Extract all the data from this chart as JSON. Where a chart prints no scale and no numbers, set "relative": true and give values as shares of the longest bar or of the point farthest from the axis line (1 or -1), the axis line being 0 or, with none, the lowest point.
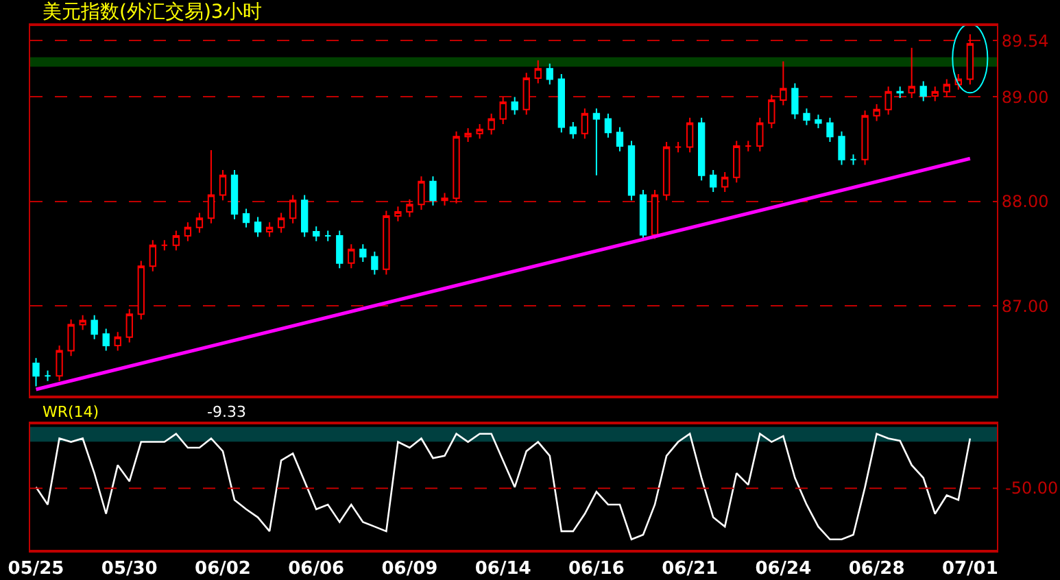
{
  "chart_data": [
    {
      "type": "candlestick",
      "title": "美元指数(外汇交易)3小时",
      "tick_labels": "y",
      "grid": "y",
      "categories": [
        "05/25",
        null,
        null,
        null,
        null,
        null,
        null,
        null,
        "05/30",
        null,
        null,
        null,
        null,
        null,
        null,
        null,
        "06/02",
        null,
        null,
        null,
        null,
        null,
        null,
        null,
        "06/06",
        null,
        null,
        null,
        null,
        null,
        null,
        null,
        "06/09",
        null,
        null,
        null,
        null,
        null,
        null,
        null,
        "06/14",
        null,
        null,
        null,
        null,
        null,
        null,
        null,
        "06/16",
        null,
        null,
        null,
        null,
        null,
        null,
        null,
        "06/21",
        null,
        null,
        null,
        null,
        null,
        null,
        null,
        "06/24",
        null,
        null,
        null,
        null,
        null,
        null,
        null,
        "06/28",
        null,
        null,
        null,
        null,
        null,
        null,
        null,
        "07/01"
      ],
      "ohlc": [
        [
          86.45,
          86.5,
          86.23,
          86.33
        ],
        [
          86.33,
          86.38,
          86.28,
          86.33
        ],
        [
          86.33,
          86.62,
          86.28,
          86.57
        ],
        [
          86.57,
          86.87,
          86.52,
          86.82
        ],
        [
          86.82,
          86.91,
          86.77,
          86.86
        ],
        [
          86.86,
          86.91,
          86.68,
          86.73
        ],
        [
          86.73,
          86.78,
          86.57,
          86.62
        ],
        [
          86.62,
          86.75,
          86.57,
          86.7
        ],
        [
          86.7,
          86.97,
          86.65,
          86.92
        ],
        [
          86.92,
          87.43,
          86.87,
          87.38
        ],
        [
          87.38,
          87.63,
          87.33,
          87.58
        ],
        [
          87.58,
          87.63,
          87.53,
          87.58
        ],
        [
          87.58,
          87.72,
          87.53,
          87.67
        ],
        [
          87.67,
          87.8,
          87.62,
          87.75
        ],
        [
          87.75,
          87.89,
          87.7,
          87.84
        ],
        [
          87.84,
          88.49,
          87.79,
          88.06
        ],
        [
          88.06,
          88.3,
          88.01,
          88.25
        ],
        [
          88.25,
          88.3,
          87.83,
          87.88
        ],
        [
          87.88,
          87.93,
          87.75,
          87.8
        ],
        [
          87.8,
          87.85,
          87.66,
          87.71
        ],
        [
          87.71,
          87.8,
          87.66,
          87.75
        ],
        [
          87.75,
          87.89,
          87.7,
          87.84
        ],
        [
          87.84,
          88.06,
          87.79,
          88.01
        ],
        [
          88.01,
          88.06,
          87.66,
          87.71
        ],
        [
          87.71,
          87.76,
          87.62,
          87.67
        ],
        [
          87.67,
          87.72,
          87.62,
          87.67
        ],
        [
          87.67,
          87.72,
          87.36,
          87.41
        ],
        [
          87.41,
          87.59,
          87.36,
          87.54
        ],
        [
          87.54,
          87.59,
          87.42,
          87.47
        ],
        [
          87.47,
          87.52,
          87.3,
          87.35
        ],
        [
          87.35,
          87.91,
          87.3,
          87.86
        ],
        [
          87.86,
          87.95,
          87.81,
          87.9
        ],
        [
          87.9,
          88.02,
          87.85,
          87.97
        ],
        [
          87.97,
          88.24,
          87.92,
          88.19
        ],
        [
          88.19,
          88.24,
          87.96,
          88.01
        ],
        [
          88.01,
          88.08,
          87.96,
          88.03
        ],
        [
          88.03,
          88.67,
          87.98,
          88.62
        ],
        [
          88.62,
          88.7,
          88.57,
          88.65
        ],
        [
          88.65,
          88.74,
          88.6,
          88.69
        ],
        [
          88.69,
          88.84,
          88.64,
          88.79
        ],
        [
          88.79,
          89.0,
          88.74,
          88.95
        ],
        [
          88.95,
          89.0,
          88.83,
          88.88
        ],
        [
          88.88,
          89.23,
          88.83,
          89.18
        ],
        [
          89.18,
          89.35,
          89.13,
          89.27
        ],
        [
          89.27,
          89.32,
          89.12,
          89.17
        ],
        [
          89.17,
          89.22,
          88.66,
          88.71
        ],
        [
          88.71,
          88.76,
          88.6,
          88.65
        ],
        [
          88.65,
          88.89,
          88.6,
          88.84
        ],
        [
          88.84,
          88.89,
          88.25,
          88.79
        ],
        [
          88.79,
          88.84,
          88.61,
          88.66
        ],
        [
          88.66,
          88.71,
          88.48,
          88.53
        ],
        [
          88.53,
          88.58,
          88.01,
          88.06
        ],
        [
          88.06,
          88.11,
          87.64,
          87.68
        ],
        [
          87.68,
          88.11,
          87.64,
          88.06
        ],
        [
          88.06,
          88.57,
          88.01,
          88.52
        ],
        [
          88.52,
          88.57,
          88.47,
          88.52
        ],
        [
          88.52,
          88.8,
          88.47,
          88.75
        ],
        [
          88.75,
          88.8,
          88.2,
          88.25
        ],
        [
          88.25,
          88.3,
          88.09,
          88.14
        ],
        [
          88.14,
          88.28,
          88.09,
          88.23
        ],
        [
          88.23,
          88.58,
          88.18,
          88.53
        ],
        [
          88.53,
          88.58,
          88.48,
          88.53
        ],
        [
          88.53,
          88.8,
          88.48,
          88.75
        ],
        [
          88.75,
          89.02,
          88.7,
          88.97
        ],
        [
          88.97,
          89.34,
          88.92,
          89.08
        ],
        [
          89.08,
          89.13,
          88.79,
          88.84
        ],
        [
          88.84,
          88.89,
          88.73,
          88.78
        ],
        [
          88.78,
          88.83,
          88.7,
          88.75
        ],
        [
          88.75,
          88.8,
          88.57,
          88.62
        ],
        [
          88.62,
          88.67,
          88.35,
          88.4
        ],
        [
          88.4,
          88.45,
          88.35,
          88.4
        ],
        [
          88.4,
          88.87,
          88.35,
          88.82
        ],
        [
          88.82,
          88.93,
          88.77,
          88.88
        ],
        [
          88.88,
          89.1,
          88.83,
          89.05
        ],
        [
          89.05,
          89.1,
          88.99,
          89.04
        ],
        [
          89.04,
          89.47,
          88.99,
          89.1
        ],
        [
          89.1,
          89.15,
          88.96,
          89.01
        ],
        [
          89.01,
          89.1,
          88.96,
          89.05
        ],
        [
          89.05,
          89.17,
          89.0,
          89.12
        ],
        [
          89.12,
          89.22,
          89.07,
          89.17
        ],
        [
          89.17,
          89.6,
          89.12,
          89.51
        ]
      ],
      "series": [
        {
          "type": "line",
          "x": [
            "05/25",
            "07/01"
          ],
          "values": [
            86.2,
            88.41
          ],
          "color": "#ff00ff"
        }
      ],
      "bands": [
        {
          "axis": "y",
          "from": 89.3,
          "to": 89.37,
          "color": "#00ff00"
        }
      ],
      "ylim": [
        86.14,
        89.68
      ],
      "yticks": [
        {
          "value": 87,
          "label": "87.00"
        },
        {
          "value": 88,
          "label": "88.00"
        },
        {
          "value": 89,
          "label": "89.00"
        },
        {
          "value": 89.54,
          "label": "89.54"
        }
      ]
    },
    {
      "type": "line",
      "title": "WR(14)",
      "annotations": [
        "-9.33",
        "-50.00"
      ],
      "categories": [
        "05/25",
        null,
        null,
        null,
        null,
        null,
        null,
        null,
        "05/30",
        null,
        null,
        null,
        null,
        null,
        null,
        null,
        "06/02",
        null,
        null,
        null,
        null,
        null,
        null,
        null,
        "06/06",
        null,
        null,
        null,
        null,
        null,
        null,
        null,
        "06/09",
        null,
        null,
        null,
        null,
        null,
        null,
        null,
        "06/14",
        null,
        null,
        null,
        null,
        null,
        null,
        null,
        "06/16",
        null,
        null,
        null,
        null,
        null,
        null,
        null,
        "06/21",
        null,
        null,
        null,
        null,
        null,
        null,
        null,
        "06/24",
        null,
        null,
        null,
        null,
        null,
        null,
        null,
        "06/28",
        null,
        null,
        null,
        null,
        null,
        null,
        null,
        "07/01"
      ],
      "series": [
        {
          "color": "#ffffff",
          "values": [
            0.54,
            0.39,
            0.96,
            0.93,
            0.96,
            0.66,
            0.31,
            0.73,
            0.59,
            0.93,
            0.93,
            0.93,
            1,
            0.88,
            0.88,
            0.96,
            0.85,
            0.43,
            0.35,
            0.28,
            0.16,
            0.77,
            0.83,
            0.59,
            0.35,
            0.39,
            0.24,
            0.39,
            0.24,
            0.2,
            0.16,
            0.93,
            0.88,
            0.96,
            0.79,
            0.81,
            1,
            0.93,
            1,
            1,
            0.77,
            0.54,
            0.85,
            0.93,
            0.81,
            0.16,
            0.16,
            0.31,
            0.5,
            0.39,
            0.39,
            0.09,
            0.13,
            0.39,
            0.81,
            0.93,
            1,
            0.62,
            0.28,
            0.2,
            0.66,
            0.56,
            1,
            0.93,
            0.98,
            0.62,
            0.39,
            0.2,
            0.09,
            0.09,
            0.13,
            0.54,
            1,
            0.96,
            0.94,
            0.73,
            0.62,
            0.31,
            0.47,
            0.43,
            0.96
          ]
        }
      ],
      "relative": true,
      "bands": [
        {
          "axis": "y",
          "from": 0.94,
          "to": 1.05,
          "color": "#00ffff"
        }
      ],
      "ref_lines": [
        {
          "axis": "y",
          "value": 0.53
        }
      ]
    }
  ]
}
